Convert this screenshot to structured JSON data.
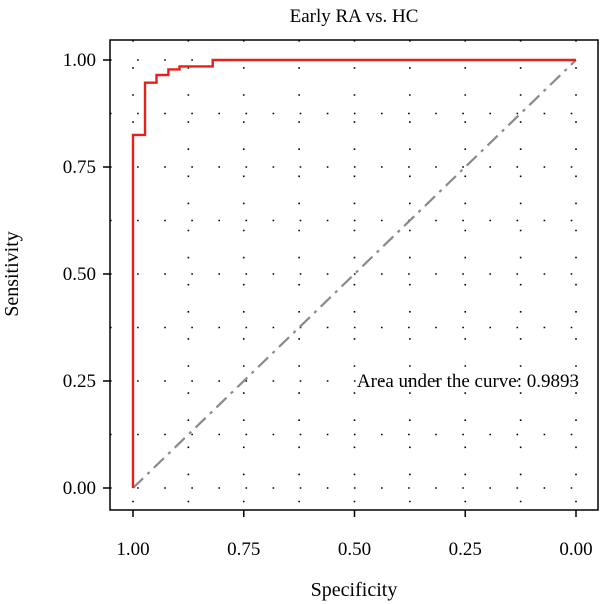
{
  "chart_data": {
    "type": "line",
    "title": "Early RA vs. HC",
    "xlabel": "Specificity",
    "ylabel": "Sensitivity",
    "xlim": [
      1.0,
      0.0
    ],
    "ylim": [
      0.0,
      1.0
    ],
    "x_reversed": true,
    "grid": "dotted",
    "x_ticks": [
      1.0,
      0.75,
      0.5,
      0.25,
      0.0
    ],
    "x_tick_labels": [
      "1.00",
      "0.75",
      "0.50",
      "0.25",
      "0.00"
    ],
    "y_ticks": [
      0.0,
      0.25,
      0.5,
      0.75,
      1.0
    ],
    "y_tick_labels": [
      "0.00",
      "0.25",
      "0.50",
      "0.75",
      "1.00"
    ],
    "series": [
      {
        "color": "#e8201a",
        "style": "step",
        "specificity": [
          1.0,
          1.0,
          0.973,
          0.973,
          0.947,
          0.947,
          0.92,
          0.92,
          0.895,
          0.895,
          0.82,
          0.82,
          0.0
        ],
        "sensitivity": [
          0.0,
          0.825,
          0.825,
          0.947,
          0.947,
          0.965,
          0.965,
          0.978,
          0.978,
          0.985,
          0.985,
          1.0,
          1.0
        ]
      },
      {
        "color": "#8a8a8a",
        "style": "dash-dot",
        "specificity": [
          1.0,
          0.0
        ],
        "sensitivity": [
          0.0,
          1.0
        ]
      }
    ],
    "annotation": {
      "text": "Area under the curve: 0.9893",
      "x": 0.0,
      "y": 0.25,
      "anchor": "end"
    }
  }
}
